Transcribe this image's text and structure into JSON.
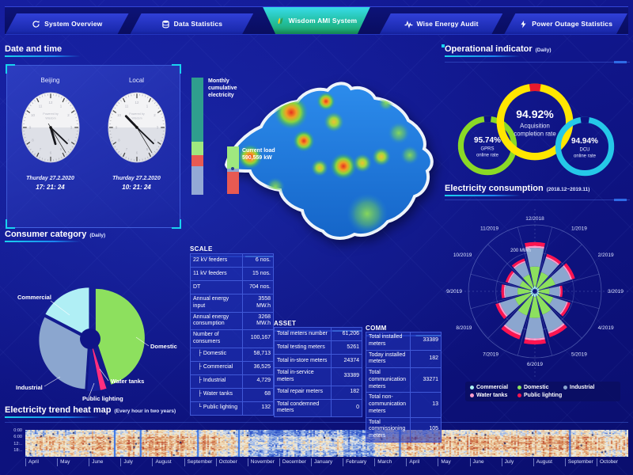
{
  "nav": {
    "tabs": [
      {
        "label": "System Overview",
        "icon": "refresh-icon",
        "active": false
      },
      {
        "label": "Data Statistics",
        "icon": "database-icon",
        "active": false
      },
      {
        "label": "Wisdom AMI System",
        "icon": "wisdom-logo-icon",
        "active": true
      },
      {
        "label": "Wise Energy Audit",
        "icon": "pulse-icon",
        "active": false
      },
      {
        "label": "Power Outage Statistics",
        "icon": "lightning-icon",
        "active": false
      }
    ]
  },
  "panels": {
    "datetime": {
      "title": "Date and time"
    },
    "consumer": {
      "title": "Consumer category",
      "subtitle": "(Daily)"
    },
    "operational": {
      "title": "Operational indicator",
      "subtitle": "(Daily)"
    },
    "consumption": {
      "title": "Electricity consumption",
      "subtitle": "(2018.12~2019.11)"
    },
    "heatmap": {
      "title": "Electricity trend heat map",
      "subtitle": "(Every hour in two years)"
    }
  },
  "clocks": [
    {
      "city": "Beijing",
      "date": "Thurday 27.2.2020",
      "time": "17: 21: 24",
      "hour": 17,
      "minute": 21,
      "second": 24,
      "watermark": "Powered by Wisdom"
    },
    {
      "city": "Local",
      "date": "Thurday 27.2.2020",
      "time": "10: 21: 24",
      "hour": 10,
      "minute": 21,
      "second": 24,
      "watermark": "Powered by Wisdom"
    }
  ],
  "bars": {
    "monthly_label": "Monthly cumulative electricity",
    "current_load_label": "Current load",
    "current_load_value": "590,559 kW",
    "monthly_segments": [
      {
        "color": "#2f9e8e",
        "pct": 55
      },
      {
        "color": "#9fe87f",
        "pct": 11
      },
      {
        "color": "#e85a52",
        "pct": 10
      },
      {
        "color": "#93a9d6",
        "pct": 24
      }
    ],
    "current_segments": [
      {
        "color": "#9fe87f",
        "pct": 46
      },
      {
        "color": "#8fa6d0",
        "pct": 8
      },
      {
        "color": "#e85a52",
        "pct": 46
      }
    ]
  },
  "tables": {
    "scale": {
      "title": "SCALE",
      "rows": [
        {
          "label": "22 kV feeders",
          "value": "6 nos."
        },
        {
          "label": "11 kV feeders",
          "value": "15 nos."
        },
        {
          "label": "DT",
          "value": "704 nos."
        },
        {
          "label": "Annual energy input",
          "value": "3558 MW.h"
        },
        {
          "label": "Annual energy consumption",
          "value": "3268 MW.h"
        },
        {
          "label": "Number of consumers",
          "value": "100,167"
        },
        {
          "label": "Domestic",
          "value": "58,713",
          "prefix": "├"
        },
        {
          "label": "Commercial",
          "value": "36,525",
          "prefix": "├"
        },
        {
          "label": "Industrial",
          "value": "4,729",
          "prefix": "├"
        },
        {
          "label": "Water tanks",
          "value": "68",
          "prefix": "├"
        },
        {
          "label": "Public lighting",
          "value": "132",
          "prefix": "└"
        }
      ]
    },
    "asset": {
      "title": "ASSET",
      "rows": [
        {
          "label": "Total meters number",
          "value": "61,206"
        },
        {
          "label": "Total testing meters",
          "value": "5261"
        },
        {
          "label": "Total in-store meters",
          "value": "24374"
        },
        {
          "label": "Total in-service meters",
          "value": "33389"
        },
        {
          "label": "Total repair meters",
          "value": "182"
        },
        {
          "label": "Total condemned meters",
          "value": "0"
        }
      ]
    },
    "comm": {
      "title": "COMM",
      "rows": [
        {
          "label": "Total installed meters",
          "value": "33389"
        },
        {
          "label": "Today installed meters",
          "value": "182"
        },
        {
          "label": "Total communication meters",
          "value": "33271"
        },
        {
          "label": "Total non-communication meters",
          "value": "13"
        },
        {
          "label": "Total commissioning meters",
          "value": "105"
        }
      ]
    }
  },
  "chart_data": [
    {
      "id": "consumer_category",
      "type": "pie",
      "title": "Consumer category (Daily)",
      "donut": true,
      "labels": [
        "Domestic",
        "Water tanks",
        "Public lighting",
        "Industrial",
        "Commercial"
      ],
      "values": [
        44,
        2,
        4,
        31,
        17
      ],
      "unit": "percent_estimated",
      "colors": [
        "#8de05e",
        "#ff2e7e",
        "#16209a",
        "#8ba6cf",
        "#b0eff5"
      ]
    },
    {
      "id": "operational_gauges",
      "type": "pie",
      "title": "Operational indicator (Daily)",
      "gauges": [
        {
          "label": "GPRS online rate",
          "value_text": "95.74%",
          "value": 95.74,
          "color": "#8ad926",
          "gap_color": "#0d1282"
        },
        {
          "label": "Acquisition completion rate",
          "value_text": "94.92%",
          "value": 94.92,
          "color": "#ffe600",
          "gap_color": "#e8192c"
        },
        {
          "label": "DCU online rate",
          "value_text": "94.94%",
          "value": 94.94,
          "color": "#25c8e8",
          "gap_color": "#0d1282"
        }
      ]
    },
    {
      "id": "electricity_consumption",
      "type": "bar",
      "subtype": "polar-stacked",
      "title": "Electricity consumption (2018.12~2019.11)",
      "unit": "MWh",
      "grid_label": "200 MWh",
      "max_mwh": 300,
      "categories": [
        "12/2018",
        "1/2019",
        "2/2019",
        "3/2019",
        "4/2019",
        "5/2019",
        "6/2019",
        "7/2019",
        "8/2019",
        "9/2019",
        "10/2019",
        "11/2019"
      ],
      "series": [
        {
          "name": "Commercial",
          "color": "#aef4f4",
          "values": [
            14,
            11,
            12,
            8,
            11,
            14,
            16,
            15,
            12,
            10,
            9,
            10
          ]
        },
        {
          "name": "Domestic",
          "color": "#8de05e",
          "values": [
            101,
            80,
            86,
            55,
            76,
            99,
            109,
            103,
            84,
            67,
            61,
            69
          ]
        },
        {
          "name": "Industrial",
          "color": "#8ba6cf",
          "values": [
            96,
            76,
            82,
            52,
            72,
            94,
            104,
            98,
            80,
            64,
            58,
            66
          ]
        },
        {
          "name": "Water tanks",
          "color": "#ff9ecb",
          "values": [
            10,
            8,
            8,
            5,
            7,
            9,
            10,
            10,
            8,
            6,
            6,
            7
          ]
        },
        {
          "name": "Public lighting",
          "color": "#ff1450",
          "values": [
            19,
            15,
            16,
            10,
            14,
            19,
            21,
            20,
            16,
            13,
            12,
            13
          ]
        }
      ],
      "legend_position": "bottom"
    },
    {
      "id": "electricity_trend_heatmap",
      "type": "heatmap",
      "title": "Electricity trend heat map (Every hour in two years)",
      "y_labels": [
        "0:00",
        "6:00",
        "12:..",
        "18:.."
      ],
      "x_labels": [
        "April",
        "May",
        "June",
        "July",
        "August",
        "September",
        "October",
        "November",
        "December",
        "January",
        "February",
        "March",
        "April",
        "May",
        "June",
        "July",
        "August",
        "September",
        "October"
      ],
      "month_warmth": [
        0.55,
        0.6,
        0.65,
        0.7,
        0.7,
        0.65,
        0.5,
        0.15,
        0.2,
        0.35,
        0.1,
        0.55,
        0.62,
        0.65,
        0.7,
        0.72,
        0.72,
        0.68,
        0.55
      ]
    },
    {
      "id": "cumulative_bars",
      "type": "bar",
      "title": "Monthly cumulative electricity / Current load",
      "bars": [
        {
          "name": "Monthly cumulative electricity",
          "segments_pct": [
            55,
            11,
            10,
            24
          ]
        },
        {
          "name": "Current load",
          "value_text": "590,559 kW",
          "segments_pct": [
            46,
            8,
            46
          ]
        }
      ]
    }
  ],
  "colors": {
    "accent": "#19d2f0",
    "nav_active_top": "#38dcea",
    "nav_active_bottom": "#1fa868"
  }
}
